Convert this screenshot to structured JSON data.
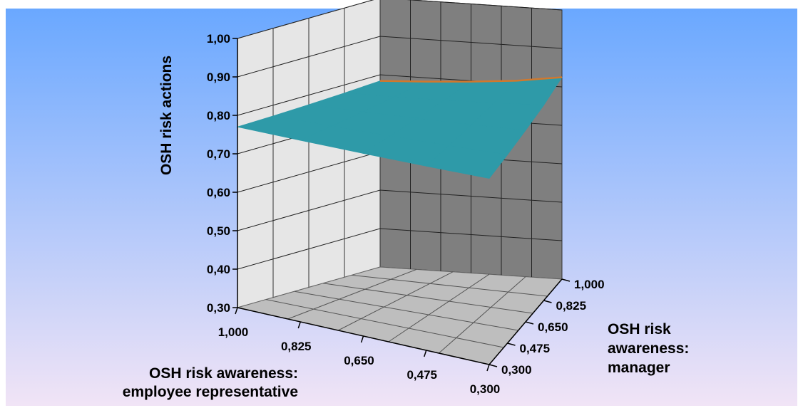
{
  "chart_data": {
    "type": "surface",
    "zlabel": "OSH risk actions",
    "xlabel": [
      "OSH risk awareness:",
      "employee representative"
    ],
    "ylabel": [
      "OSH risk",
      "awareness:",
      "manager"
    ],
    "zlim": [
      0.3,
      1.0
    ],
    "z_ticks": [
      "0,30",
      "0,40",
      "0,50",
      "0,60",
      "0,70",
      "0,80",
      "0,90",
      "1,00"
    ],
    "x_ticks": [
      "1,000",
      "0,825",
      "0,650",
      "0,475",
      "0,300"
    ],
    "y_ticks": [
      "0,300",
      "0,475",
      "0,650",
      "0,825",
      "1,000"
    ],
    "x_values": [
      1.0,
      0.825,
      0.65,
      0.475,
      0.3
    ],
    "y_values": [
      0.3,
      0.475,
      0.65,
      0.825,
      1.0
    ],
    "surface_z": [
      [
        0.77,
        0.772,
        0.775,
        0.779,
        0.784
      ],
      [
        0.772,
        0.775,
        0.779,
        0.784,
        0.79
      ],
      [
        0.775,
        0.779,
        0.784,
        0.79,
        0.798
      ],
      [
        0.779,
        0.784,
        0.79,
        0.798,
        0.808
      ],
      [
        0.784,
        0.79,
        0.798,
        0.808,
        0.825
      ]
    ],
    "colors": {
      "surface_top": "#2e9aa8",
      "surface_edge": "#d2782c",
      "left_wall": "#e6e6e6",
      "back_wall": "#7f7f7f",
      "floor": "#bebebe",
      "background_top": "#6aa8ff",
      "background_bottom": "#f1e4f6"
    },
    "grid": true
  }
}
